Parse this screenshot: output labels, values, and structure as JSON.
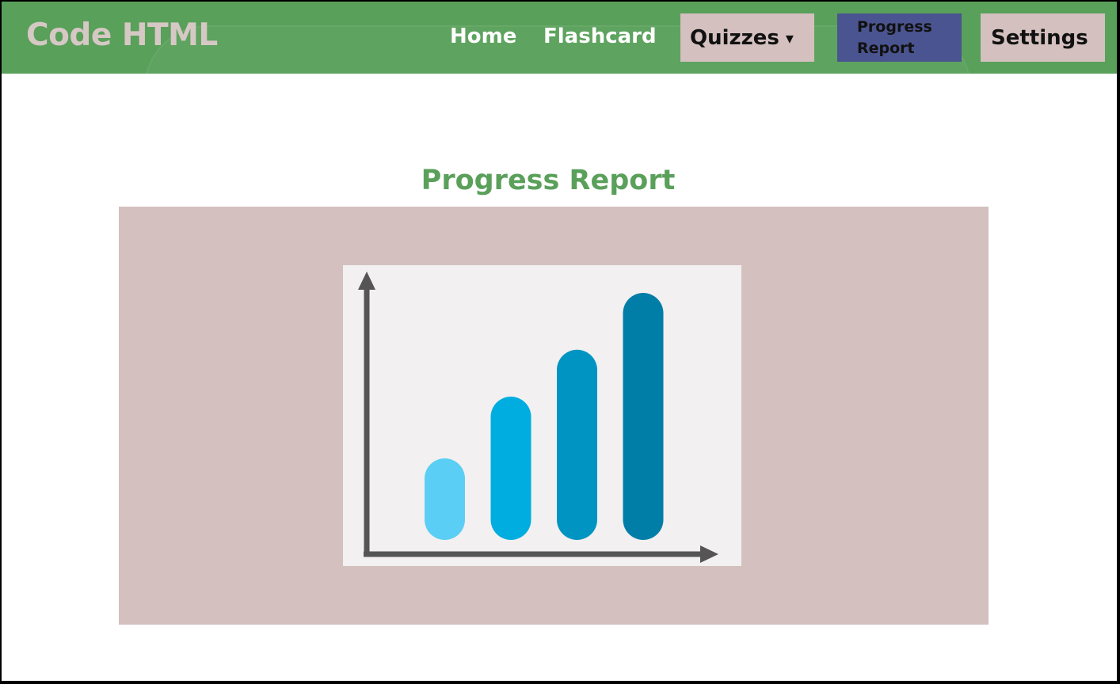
{
  "header": {
    "brand": "Code HTML",
    "nav": {
      "home": "Home",
      "flashcard": "Flashcard",
      "quizzes": "Quizzes",
      "quizzes_caret": "▾",
      "progress_line1": "Progress",
      "progress_line2": "Report",
      "settings": "Settings"
    }
  },
  "main": {
    "title": "Progress Report",
    "illustration": {
      "icon": "bar-chart-icon",
      "bar_colors": [
        "#5acef4",
        "#00ade0",
        "#0094c2",
        "#007ea8"
      ],
      "relative_levels": [
        0.33,
        0.58,
        0.77,
        1.0
      ],
      "axis_color": "#555555"
    }
  },
  "colors": {
    "header_bg": "#59a05a",
    "brand_text": "#d6c8c4",
    "menu_button_bg": "#d3c0bf",
    "active_button_bg": "#4a5490",
    "title_text": "#5aa05b",
    "panel_bg": "#d3c0bf",
    "illustration_bg": "#f2f0f0"
  }
}
